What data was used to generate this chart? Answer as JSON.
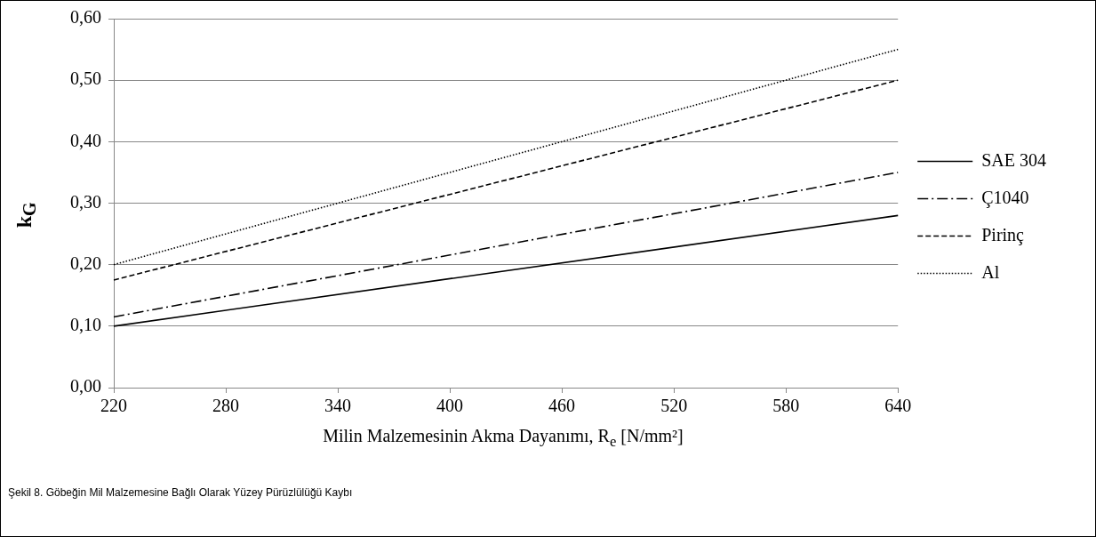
{
  "chart_data": {
    "type": "line",
    "xlabel": "Milin Malzemesinin Akma Dayanımı, R$_{e}$ [N/mm²]",
    "ylabel": "k$_{G}$",
    "annotations": [
      "Şekil 8. Göbeğin Mil Malzemesine Bağlı Olarak Yüzey Pürüzlülüğü Kaybı"
    ],
    "x": [
      220,
      640
    ],
    "xlim": [
      220,
      640
    ],
    "xticks": [
      220,
      280,
      340,
      400,
      460,
      520,
      580,
      640
    ],
    "ylim": [
      0,
      0.6
    ],
    "yticks": [
      {
        "value": 0,
        "label": "0,00"
      },
      {
        "value": 0.1,
        "label": "0,10"
      },
      {
        "value": 0.2,
        "label": "0,20"
      },
      {
        "value": 0.3,
        "label": "0,30"
      },
      {
        "value": 0.4,
        "label": "0,40"
      },
      {
        "value": 0.5,
        "label": "0,50"
      },
      {
        "value": 0.6,
        "label": "0,60"
      }
    ],
    "grid": "y",
    "legend": "right",
    "marker": "none",
    "series": [
      {
        "name": "SAE 304",
        "color": "#000000",
        "line_style": "solid",
        "values": [
          0.1,
          0.28
        ]
      },
      {
        "name": "Ç1040",
        "color": "#000000",
        "line_style": "dashdot",
        "values": [
          0.115,
          0.35
        ]
      },
      {
        "name": "Pirinç",
        "color": "#000000",
        "line_style": "dashed",
        "values": [
          0.175,
          0.5
        ]
      },
      {
        "name": "Al",
        "color": "#000000",
        "line_style": "dotted",
        "values": [
          0.2,
          0.55
        ]
      }
    ]
  }
}
